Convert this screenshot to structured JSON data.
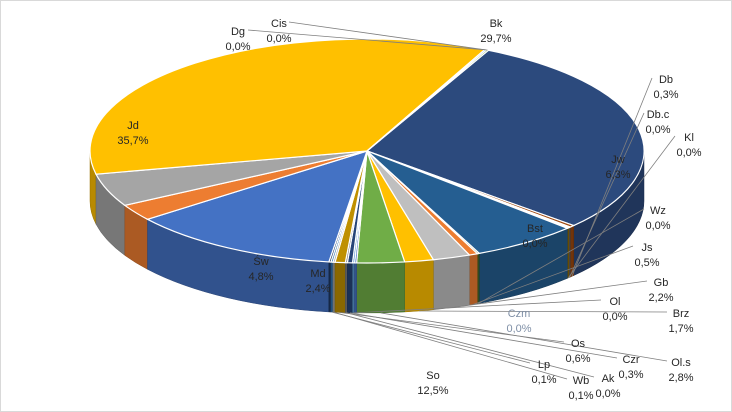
{
  "chart_data": {
    "type": "pie",
    "style": "3d",
    "slices": [
      {
        "label": "Bk",
        "value_text": "29,7%",
        "value": 29.7,
        "color": "#2c4a7d",
        "label_pos": "outside"
      },
      {
        "label": "Db",
        "value_text": "0,3%",
        "value": 0.3,
        "color": "#9e480e",
        "label_pos": "outside"
      },
      {
        "label": "Db.c",
        "value_text": "0,0%",
        "value": 0.0,
        "color": "#636363",
        "label_pos": "outside"
      },
      {
        "label": "Kl",
        "value_text": "0,0%",
        "value": 0.0,
        "color": "#997300",
        "label_pos": "outside"
      },
      {
        "label": "Jw",
        "value_text": "6,3%",
        "value": 6.3,
        "color": "#255e91",
        "label_pos": "inside"
      },
      {
        "label": "Wz",
        "value_text": "0,0%",
        "value": 0.0,
        "color": "#43682b",
        "label_pos": "outside"
      },
      {
        "label": "Js",
        "value_text": "0,5%",
        "value": 0.5,
        "color": "#ed7d31",
        "label_pos": "outside"
      },
      {
        "label": "Gb",
        "value_text": "2,2%",
        "value": 2.2,
        "color": "#bfbfbf",
        "label_pos": "outside"
      },
      {
        "label": "Brz",
        "value_text": "1,7%",
        "value": 1.7,
        "color": "#ffc000",
        "label_pos": "outside"
      },
      {
        "label": "Ol.s",
        "value_text": "2,8%",
        "value": 2.8,
        "color": "#70ad47",
        "label_pos": "outside"
      },
      {
        "label": "Bst",
        "value_text": "0,0%",
        "value": 0.0,
        "color": "#4472c4",
        "label_pos": "inside"
      },
      {
        "label": "Ol",
        "value_text": "0,0%",
        "value": 0.0,
        "color": "#5b9bd5",
        "label_pos": "outside"
      },
      {
        "label": "Czr",
        "value_text": "0,3%",
        "value": 0.3,
        "color": "#264478",
        "label_pos": "outside"
      },
      {
        "label": "Ak",
        "value_text": "0,0%",
        "value": 0.0,
        "color": "#7f7f7f",
        "label_pos": "outside"
      },
      {
        "label": "Os",
        "value_text": "0,6%",
        "value": 0.6,
        "color": "#bf9000",
        "label_pos": "outside"
      },
      {
        "label": "Wb",
        "value_text": "0,1%",
        "value": 0.1,
        "color": "#a5a5a5",
        "label_pos": "outside"
      },
      {
        "label": "Lp",
        "value_text": "0,1%",
        "value": 0.1,
        "color": "#2e75b6",
        "label_pos": "outside"
      },
      {
        "label": "Czm",
        "value_text": "0,0%",
        "value": 0.0,
        "color": "#1f3864",
        "label_pos": "inside"
      },
      {
        "label": "So",
        "value_text": "12,5%",
        "value": 12.5,
        "color": "#4472c4",
        "label_pos": "outside"
      },
      {
        "label": "Md",
        "value_text": "2,4%",
        "value": 2.4,
        "color": "#ed7d31",
        "label_pos": "inside"
      },
      {
        "label": "Św",
        "value_text": "4,8%",
        "value": 4.8,
        "color": "#a5a5a5",
        "label_pos": "inside"
      },
      {
        "label": "Jd",
        "value_text": "35,7%",
        "value": 35.7,
        "color": "#ffc000",
        "label_pos": "inside"
      },
      {
        "label": "Dg",
        "value_text": "0,0%",
        "value": 0.0,
        "color": "#5b9bd5",
        "label_pos": "outside"
      },
      {
        "label": "Cis",
        "value_text": "0,0%",
        "value": 0.0,
        "color": "#70ad47",
        "label_pos": "outside"
      }
    ]
  }
}
